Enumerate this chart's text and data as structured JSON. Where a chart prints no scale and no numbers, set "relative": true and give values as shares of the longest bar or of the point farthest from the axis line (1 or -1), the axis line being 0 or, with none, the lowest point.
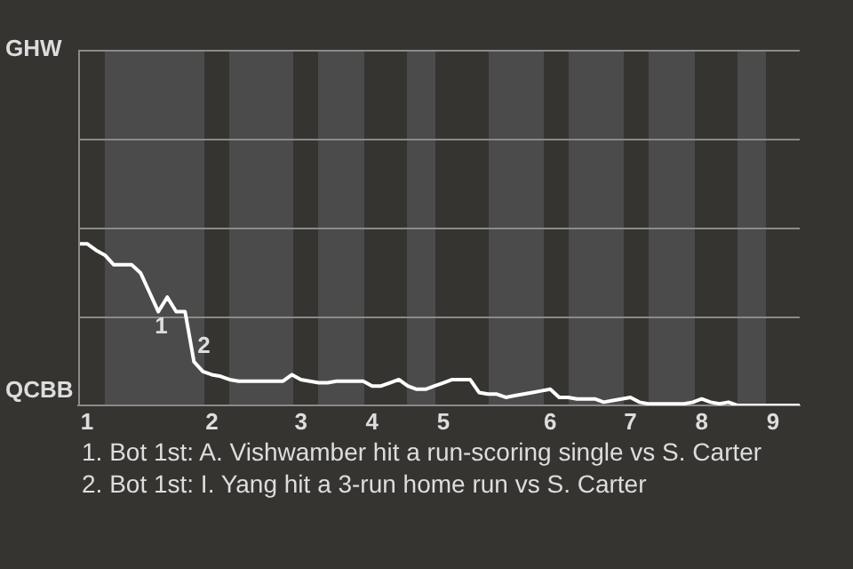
{
  "chart_data": {
    "type": "line",
    "relative": true,
    "categories": [
      null,
      "1",
      null,
      null,
      null,
      null,
      null,
      null,
      null,
      null,
      null,
      null,
      null,
      null,
      null,
      "2",
      null,
      null,
      null,
      null,
      null,
      null,
      null,
      null,
      null,
      "3",
      null,
      null,
      null,
      null,
      null,
      null,
      null,
      "4",
      null,
      null,
      null,
      null,
      null,
      null,
      null,
      "5",
      null,
      null,
      null,
      null,
      null,
      null,
      null,
      null,
      null,
      null,
      null,
      "6",
      null,
      null,
      null,
      null,
      null,
      null,
      null,
      null,
      "7",
      null,
      null,
      null,
      null,
      null,
      null,
      null,
      "8",
      null,
      null,
      null,
      null,
      null,
      null,
      null,
      "9",
      null,
      null,
      null
    ],
    "series": [
      {
        "color": "#ffffff",
        "values": [
          1,
          1,
          0.96,
          0.93,
          0.87,
          0.87,
          0.87,
          0.82,
          0.7,
          0.58,
          0.67,
          0.58,
          0.58,
          0.27,
          0.21,
          0.19,
          0.18,
          0.16,
          0.15,
          0.15,
          0.15,
          0.15,
          0.15,
          0.15,
          0.19,
          0.16,
          0.15,
          0.14,
          0.14,
          0.15,
          0.15,
          0.15,
          0.15,
          0.12,
          0.12,
          0.14,
          0.16,
          0.12,
          0.1,
          0.1,
          0.12,
          0.14,
          0.16,
          0.16,
          0.16,
          0.08,
          0.07,
          0.07,
          0.05,
          0.06,
          0.07,
          0.08,
          0.09,
          0.1,
          0.05,
          0.05,
          0.04,
          0.04,
          0.04,
          0.02,
          0.03,
          0.04,
          0.05,
          0.02,
          0.01,
          0.01,
          0.01,
          0.01,
          0.01,
          0.02,
          0.04,
          0.02,
          0.01,
          0.02,
          0,
          0,
          0,
          0,
          0,
          0,
          0,
          0
        ]
      }
    ],
    "legend": false,
    "marker": "none",
    "line_style": "solid",
    "ref_lines": [
      {
        "axis": "y",
        "value": 0.55,
        "color": "#8a8a88"
      },
      {
        "axis": "y",
        "value": 1.1,
        "color": "#8a8a88"
      },
      {
        "axis": "y",
        "value": 1.65,
        "color": "#8a8a88"
      },
      {
        "axis": "y",
        "value": 2.2,
        "color": "#8a8a88"
      }
    ],
    "annotations": [
      "GHW",
      "QCBB",
      {
        "text": "1",
        "y": 0.58
      },
      {
        "text": "2",
        "y": 0.27
      },
      "1. Bot 1st: A. Vishwamber hit a run-scoring single vs S. Carter",
      "2. Bot 1st: I. Yang hit a 3-run home run vs S. Carter"
    ]
  }
}
